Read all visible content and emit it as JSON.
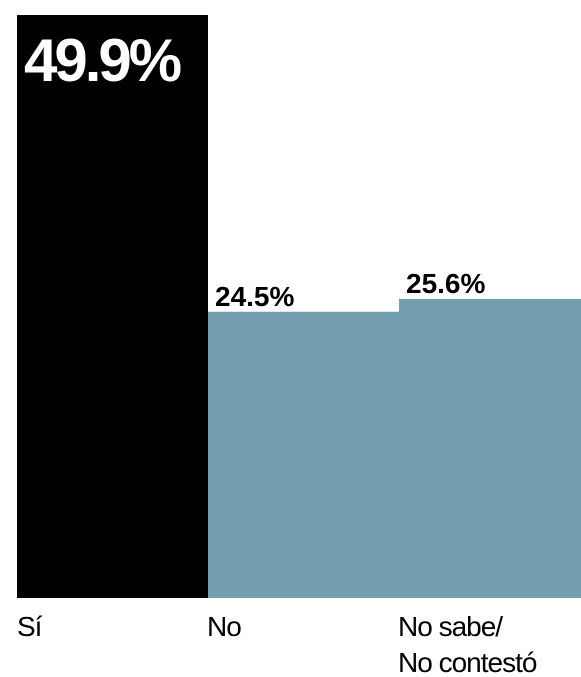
{
  "chart_data": {
    "type": "bar",
    "categories": [
      "Sí",
      "No",
      "No sabe/ No contestó"
    ],
    "category_lines": [
      [
        "Sí"
      ],
      [
        "No"
      ],
      [
        "No sabe/",
        "No contestó"
      ]
    ],
    "values": [
      49.9,
      24.5,
      25.6
    ],
    "value_labels": [
      "49.9%",
      "24.5%",
      "25.6%"
    ],
    "colors": [
      "#000000",
      "#739fae",
      "#739fae"
    ],
    "ylim": [
      0,
      49.9
    ],
    "grid": false,
    "legend": "none"
  }
}
